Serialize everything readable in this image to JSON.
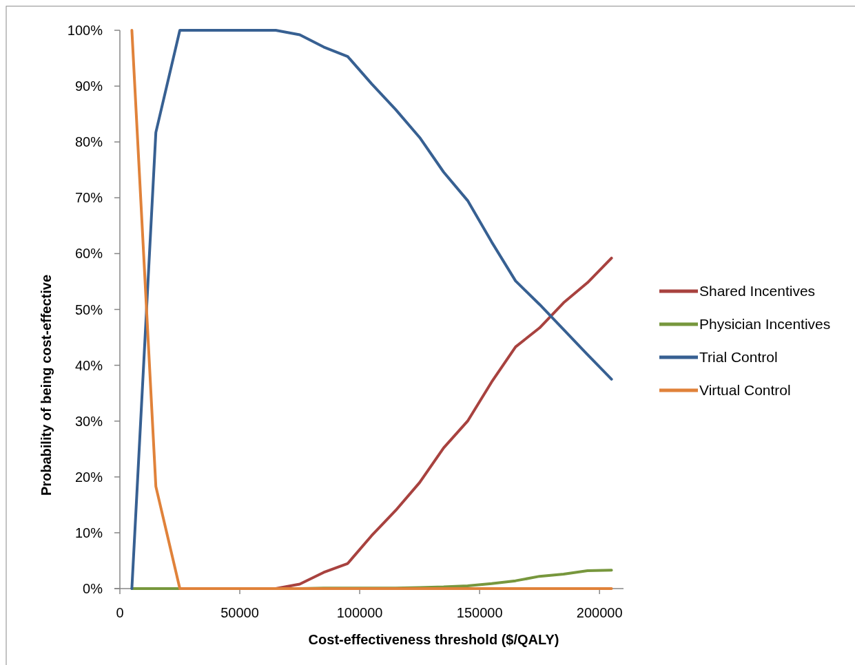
{
  "chart_data": {
    "type": "line",
    "xlabel": "Cost-effectiveness threshold ($/QALY)",
    "ylabel": "Probability of being cost-effective",
    "x": [
      5000,
      15000,
      25000,
      35000,
      45000,
      55000,
      65000,
      75000,
      85000,
      95000,
      105000,
      115000,
      125000,
      135000,
      145000,
      155000,
      165000,
      175000,
      185000,
      195000,
      205000
    ],
    "xlim": [
      0,
      210000
    ],
    "xticks": [
      0,
      50000,
      100000,
      150000,
      200000
    ],
    "ylim": [
      0,
      100
    ],
    "yticks": [
      {
        "value": 0,
        "label": "0%"
      },
      {
        "value": 10,
        "label": "10%"
      },
      {
        "value": 20,
        "label": "20%"
      },
      {
        "value": 30,
        "label": "30%"
      },
      {
        "value": 40,
        "label": "40%"
      },
      {
        "value": 50,
        "label": "50%"
      },
      {
        "value": 60,
        "label": "60%"
      },
      {
        "value": 70,
        "label": "70%"
      },
      {
        "value": 80,
        "label": "80%"
      },
      {
        "value": 90,
        "label": "90%"
      },
      {
        "value": 100,
        "label": "100%"
      }
    ],
    "grid": false,
    "legend": "right",
    "marker": "none",
    "line_style": "solid",
    "series": [
      {
        "name": "Shared Incentives",
        "color": "#a8423f",
        "values": [
          null,
          null,
          null,
          null,
          null,
          null,
          0,
          0.8,
          2.9,
          4.5,
          9.5,
          14,
          19,
          25.2,
          30,
          37,
          43.3,
          46.7,
          51.2,
          54.8,
          59.2
        ]
      },
      {
        "name": "Physician Incentives",
        "color": "#77973d",
        "values": [
          0,
          0,
          0,
          0,
          0,
          0,
          0,
          0,
          0.1,
          0.1,
          0.1,
          0.1,
          0.2,
          0.3,
          0.5,
          0.9,
          1.4,
          2.2,
          2.6,
          3.2,
          3.3
        ]
      },
      {
        "name": "Trial Control",
        "color": "#376092",
        "values": [
          0,
          81.7,
          100,
          100,
          100,
          100,
          100,
          99.2,
          97,
          95.3,
          90.4,
          85.8,
          80.8,
          74.6,
          69.5,
          62.1,
          55.1,
          50.9,
          46.4,
          41.9,
          37.5
        ]
      },
      {
        "name": "Virtual Control",
        "color": "#e0823a",
        "values": [
          100,
          18.3,
          0,
          0,
          0,
          0,
          0,
          0,
          0,
          0,
          0,
          0,
          0,
          0,
          0,
          0,
          0,
          0,
          0,
          0,
          0
        ]
      }
    ]
  }
}
